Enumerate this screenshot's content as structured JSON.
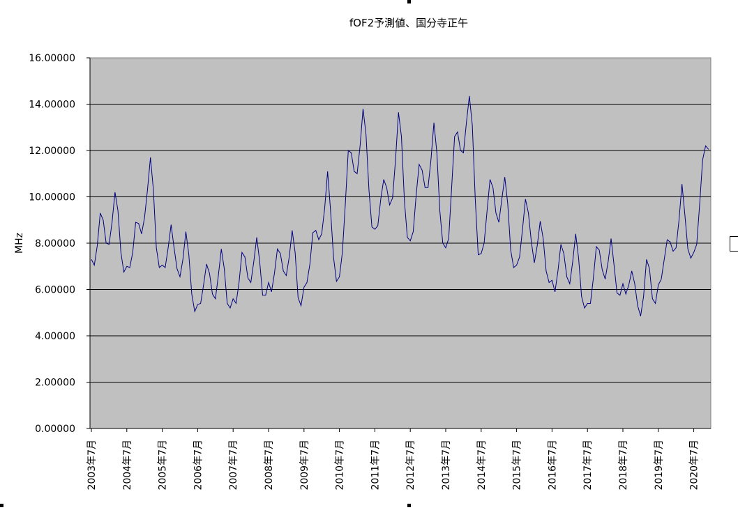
{
  "chart_data": {
    "type": "line",
    "title": "fOF2予測値、国分寺正午",
    "ylabel": "MHz",
    "xlabel": "",
    "ylim": [
      0,
      16
    ],
    "yticks": [
      "0.00000",
      "2.00000",
      "4.00000",
      "6.00000",
      "8.00000",
      "10.00000",
      "12.00000",
      "14.00000",
      "16.00000"
    ],
    "xticks": [
      "2003年7月",
      "2004年7月",
      "2005年7月",
      "2006年7月",
      "2007年7月",
      "2008年7月",
      "2009年7月",
      "2010年7月",
      "2011年7月",
      "2012年7月",
      "2013年7月",
      "2014年7月",
      "2015年7月",
      "2016年7月",
      "2017年7月",
      "2018年7月",
      "2019年7月",
      "2020年7月"
    ],
    "grid": true,
    "background": "#c0c0c0",
    "line_color": "#000080",
    "series": [
      {
        "name": "",
        "x_start": "2003-07",
        "interval": "month",
        "values": [
          7.3,
          7.05,
          7.9,
          9.3,
          9.0,
          8.0,
          7.95,
          8.9,
          10.2,
          9.4,
          7.6,
          6.75,
          7.0,
          6.95,
          7.6,
          8.9,
          8.85,
          8.4,
          9.1,
          10.3,
          11.7,
          10.3,
          7.8,
          6.95,
          7.05,
          6.95,
          7.8,
          8.8,
          7.8,
          6.9,
          6.55,
          7.3,
          8.5,
          7.5,
          5.8,
          5.05,
          5.35,
          5.4,
          6.2,
          7.1,
          6.7,
          5.8,
          5.6,
          6.6,
          7.75,
          6.9,
          5.4,
          5.2,
          5.6,
          5.4,
          6.3,
          7.6,
          7.4,
          6.5,
          6.3,
          7.2,
          8.25,
          7.2,
          5.75,
          5.75,
          6.3,
          5.9,
          6.7,
          7.75,
          7.55,
          6.8,
          6.6,
          7.4,
          8.55,
          7.6,
          5.65,
          5.3,
          6.1,
          6.3,
          7.1,
          8.45,
          8.55,
          8.15,
          8.4,
          9.5,
          11.1,
          9.4,
          7.4,
          6.35,
          6.55,
          7.6,
          9.7,
          12.0,
          11.9,
          11.1,
          11.0,
          12.2,
          13.8,
          12.7,
          10.3,
          8.7,
          8.6,
          8.75,
          9.9,
          10.75,
          10.4,
          9.65,
          9.95,
          11.6,
          13.65,
          12.6,
          9.85,
          8.25,
          8.1,
          8.5,
          10.1,
          11.4,
          11.15,
          10.4,
          10.4,
          11.6,
          13.2,
          11.9,
          9.4,
          8.0,
          7.8,
          8.2,
          10.4,
          12.6,
          12.8,
          12.0,
          11.9,
          13.2,
          14.35,
          13.1,
          9.9,
          7.5,
          7.55,
          8.0,
          9.4,
          10.75,
          10.4,
          9.3,
          8.9,
          9.9,
          10.85,
          9.7,
          7.7,
          6.95,
          7.05,
          7.4,
          8.6,
          9.9,
          9.3,
          8.05,
          7.15,
          7.9,
          8.95,
          8.2,
          6.8,
          6.3,
          6.4,
          5.9,
          6.8,
          7.95,
          7.55,
          6.55,
          6.25,
          7.2,
          8.4,
          7.35,
          5.7,
          5.2,
          5.4,
          5.4,
          6.5,
          7.85,
          7.7,
          6.85,
          6.45,
          7.2,
          8.2,
          7.05,
          5.85,
          5.75,
          6.25,
          5.8,
          6.2,
          6.8,
          6.25,
          5.3,
          4.85,
          5.7,
          7.3,
          6.9,
          5.6,
          5.4,
          6.2,
          6.45,
          7.3,
          8.15,
          8.05,
          7.65,
          7.8,
          9.0,
          10.55,
          9.2,
          7.75,
          7.35,
          7.6,
          7.95,
          9.7,
          11.6,
          12.2,
          12.05
        ]
      }
    ]
  }
}
